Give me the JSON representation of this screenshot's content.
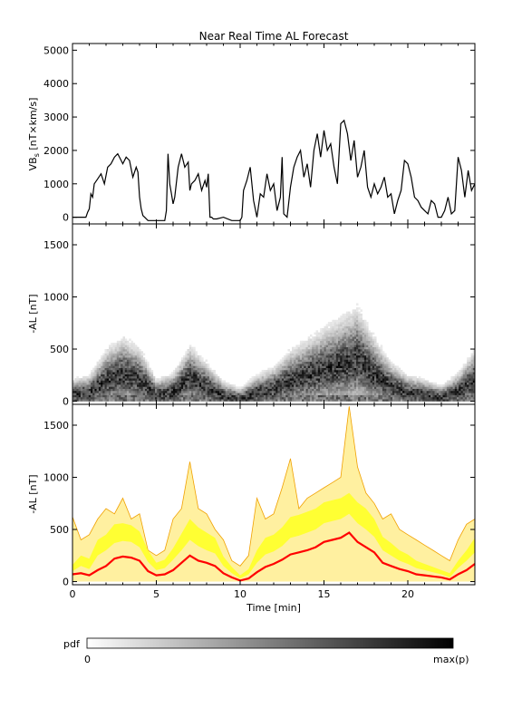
{
  "chart_data": [
    {
      "type": "line",
      "title": "Near Real Time AL Forecast",
      "ylabel": "VB_s [nT×km/s]",
      "ylabel_main": "VB",
      "ylabel_sub": "s",
      "ylabel_rest": " [nT×km/s]",
      "ylim": [
        -200,
        5200
      ],
      "yticks": [
        "0",
        "1000",
        "2000",
        "3000",
        "4000",
        "5000"
      ],
      "xlim": [
        0,
        24
      ],
      "grid": false,
      "series": [
        {
          "x": [
            0.0,
            0.4,
            0.8,
            0.9,
            1.0,
            1.1,
            1.2,
            1.3,
            1.5,
            1.7,
            1.9,
            2.1,
            2.3,
            2.5,
            2.7,
            2.9,
            3.0,
            3.2,
            3.4,
            3.6,
            3.8,
            3.9,
            4.0,
            4.1,
            4.2,
            4.3,
            4.5,
            5.0,
            5.5,
            5.6,
            5.7,
            5.8,
            5.9,
            6.0,
            6.1,
            6.3,
            6.5,
            6.7,
            6.9,
            7.0,
            7.1,
            7.3,
            7.5,
            7.7,
            7.9,
            8.0,
            8.1,
            8.2,
            8.3,
            8.4,
            8.6,
            9.0,
            9.5,
            10.0,
            10.1,
            10.2,
            10.4,
            10.6,
            10.8,
            11.0,
            11.2,
            11.4,
            11.6,
            11.8,
            12.0,
            12.2,
            12.4,
            12.5,
            12.6,
            12.8,
            13.0,
            13.2,
            13.4,
            13.6,
            13.8,
            14.0,
            14.2,
            14.4,
            14.6,
            14.8,
            15.0,
            15.2,
            15.4,
            15.6,
            15.8,
            16.0,
            16.2,
            16.4,
            16.6,
            16.8,
            17.0,
            17.2,
            17.4,
            17.6,
            17.8,
            18.0,
            18.2,
            18.4,
            18.6,
            18.8,
            19.0,
            19.2,
            19.4,
            19.6,
            19.8,
            20.0,
            20.2,
            20.4,
            20.6,
            20.8,
            21.0,
            21.2,
            21.4,
            21.6,
            21.8,
            22.0,
            22.2,
            22.4,
            22.6,
            22.8,
            23.0,
            23.2,
            23.4,
            23.6,
            23.8,
            24.0
          ],
          "y": [
            0,
            0,
            0,
            150,
            250,
            700,
            600,
            1000,
            1150,
            1300,
            1000,
            1500,
            1600,
            1800,
            1900,
            1700,
            1600,
            1800,
            1700,
            1200,
            1500,
            1350,
            600,
            250,
            50,
            0,
            -100,
            -100,
            -100,
            200,
            1900,
            1000,
            700,
            400,
            600,
            1500,
            1900,
            1500,
            1650,
            800,
            1000,
            1100,
            1300,
            800,
            1100,
            900,
            1300,
            0,
            0,
            -50,
            -50,
            0,
            -100,
            -100,
            0,
            800,
            1100,
            1500,
            500,
            0,
            700,
            600,
            1300,
            800,
            1000,
            200,
            600,
            1800,
            100,
            0,
            900,
            1500,
            1800,
            2000,
            1200,
            1600,
            900,
            2000,
            2500,
            1800,
            2600,
            2000,
            2200,
            1500,
            1000,
            2800,
            2900,
            2500,
            1700,
            2300,
            1200,
            1500,
            2000,
            900,
            600,
            1000,
            700,
            900,
            1200,
            600,
            700,
            100,
            500,
            800,
            1700,
            1600,
            1200,
            600,
            500,
            300,
            200,
            100,
            500,
            400,
            0,
            0,
            200,
            600,
            100,
            200,
            1800,
            1400,
            600,
            1400,
            800,
            1000
          ]
        }
      ]
    },
    {
      "type": "heatmap",
      "ylabel": "-AL [nT]",
      "ylim": [
        -30,
        1700
      ],
      "yticks": [
        "0",
        "500",
        "1000",
        "1500"
      ],
      "xlim": [
        0,
        24
      ],
      "colorbar": {
        "label": "pdf",
        "min_label": "0",
        "max_label": "max(p)",
        "colors": [
          "#ffffff",
          "#000000"
        ]
      },
      "peak_track": {
        "x": [
          0,
          1,
          2,
          3,
          4,
          5,
          6,
          7,
          8,
          9,
          10,
          11,
          12,
          13,
          14,
          15,
          16,
          17,
          18,
          19,
          20,
          21,
          22,
          23,
          24
        ],
        "y": [
          60,
          80,
          200,
          260,
          210,
          60,
          90,
          220,
          140,
          50,
          20,
          80,
          120,
          200,
          250,
          300,
          350,
          400,
          260,
          140,
          80,
          60,
          30,
          90,
          200
        ]
      }
    },
    {
      "type": "area",
      "ylabel": "-AL [nT]",
      "ylim": [
        -30,
        1700
      ],
      "yticks": [
        "0",
        "500",
        "1000",
        "1500"
      ],
      "xlim": [
        0,
        24
      ],
      "xticks": [
        "0",
        "5",
        "10",
        "15",
        "20"
      ],
      "xlabel": "Time [min]",
      "colors": {
        "median": "#ff0000",
        "band_inner": "#ffff33",
        "band_outer": "#fff0a0",
        "envelope": "#f0a000"
      },
      "x": [
        0,
        0.5,
        1,
        1.5,
        2,
        2.5,
        3,
        3.5,
        4,
        4.5,
        5,
        5.5,
        6,
        6.5,
        7,
        7.5,
        8,
        8.5,
        9,
        9.5,
        10,
        10.5,
        11,
        11.5,
        12,
        12.5,
        13,
        13.5,
        14,
        14.5,
        15,
        15.5,
        16,
        16.5,
        17,
        17.5,
        18,
        18.5,
        19,
        19.5,
        20,
        20.5,
        21,
        21.5,
        22,
        22.5,
        23,
        23.5,
        24
      ],
      "median": [
        70,
        80,
        60,
        110,
        150,
        220,
        240,
        230,
        200,
        100,
        60,
        70,
        110,
        180,
        250,
        200,
        180,
        150,
        80,
        40,
        10,
        30,
        90,
        140,
        170,
        210,
        260,
        280,
        300,
        330,
        380,
        400,
        420,
        470,
        380,
        330,
        280,
        180,
        150,
        120,
        100,
        70,
        60,
        50,
        40,
        20,
        70,
        110,
        170
      ],
      "band_low": [
        100,
        150,
        120,
        250,
        300,
        370,
        390,
        380,
        330,
        190,
        110,
        130,
        210,
        300,
        400,
        340,
        300,
        270,
        150,
        80,
        30,
        70,
        180,
        260,
        290,
        340,
        420,
        440,
        470,
        500,
        560,
        580,
        600,
        650,
        560,
        500,
        430,
        300,
        250,
        200,
        170,
        130,
        110,
        90,
        70,
        40,
        130,
        200,
        280
      ],
      "band_high": [
        160,
        250,
        220,
        400,
        450,
        550,
        560,
        540,
        480,
        300,
        180,
        210,
        320,
        460,
        600,
        520,
        470,
        420,
        240,
        140,
        60,
        120,
        300,
        420,
        450,
        520,
        620,
        640,
        670,
        700,
        760,
        780,
        800,
        850,
        760,
        700,
        600,
        430,
        370,
        300,
        260,
        200,
        170,
        140,
        110,
        80,
        200,
        300,
        420
      ],
      "envelope": [
        620,
        400,
        450,
        600,
        700,
        650,
        800,
        600,
        650,
        300,
        250,
        300,
        600,
        700,
        1150,
        700,
        650,
        500,
        400,
        200,
        150,
        250,
        800,
        600,
        650,
        900,
        1180,
        700,
        800,
        850,
        900,
        950,
        1000,
        1680,
        1100,
        850,
        750,
        600,
        650,
        500,
        450,
        400,
        350,
        300,
        250,
        200,
        400,
        550,
        600
      ]
    }
  ]
}
